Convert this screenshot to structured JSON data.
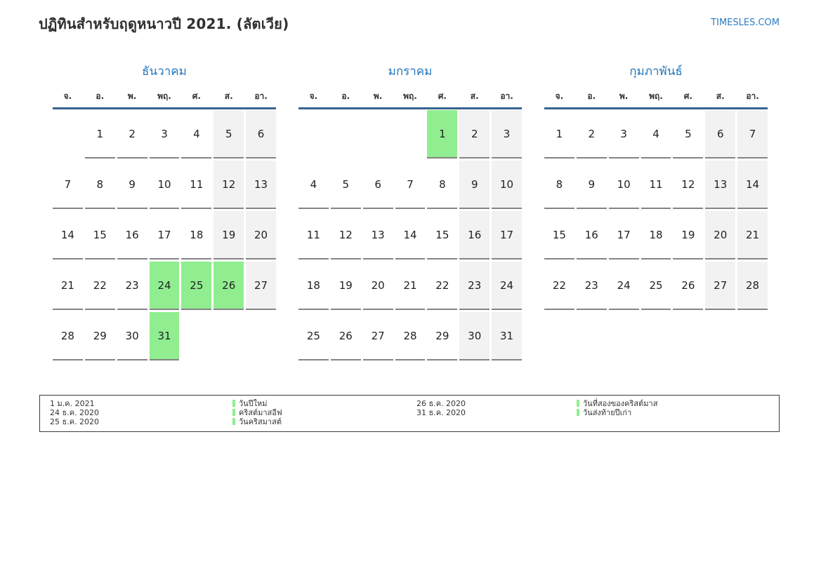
{
  "header": {
    "title": "ปฏิทินสำหรับฤดูหนาวปี 2021. (ลัตเวีย)",
    "site_link": "TIMESLES.COM"
  },
  "weekdays": [
    "จ.",
    "อ.",
    "พ.",
    "พฤ.",
    "ศ.",
    "ส.",
    "อา."
  ],
  "months": [
    {
      "name": "ธันวาคม",
      "weeks": [
        [
          "",
          "1",
          "2",
          "3",
          "4",
          "5",
          "6"
        ],
        [
          "7",
          "8",
          "9",
          "10",
          "11",
          "12",
          "13"
        ],
        [
          "14",
          "15",
          "16",
          "17",
          "18",
          "19",
          "20"
        ],
        [
          "21",
          "22",
          "23",
          "24",
          "25",
          "26",
          "27"
        ],
        [
          "28",
          "29",
          "30",
          "31",
          "",
          "",
          ""
        ]
      ],
      "holidays": [
        "24",
        "25",
        "26",
        "31"
      ]
    },
    {
      "name": "มกราคม",
      "weeks": [
        [
          "",
          "",
          "",
          "",
          "1",
          "2",
          "3"
        ],
        [
          "4",
          "5",
          "6",
          "7",
          "8",
          "9",
          "10"
        ],
        [
          "11",
          "12",
          "13",
          "14",
          "15",
          "16",
          "17"
        ],
        [
          "18",
          "19",
          "20",
          "21",
          "22",
          "23",
          "24"
        ],
        [
          "25",
          "26",
          "27",
          "28",
          "29",
          "30",
          "31"
        ]
      ],
      "holidays": [
        "1"
      ]
    },
    {
      "name": "กุมภาพันธ์",
      "weeks": [
        [
          "1",
          "2",
          "3",
          "4",
          "5",
          "6",
          "7"
        ],
        [
          "8",
          "9",
          "10",
          "11",
          "12",
          "13",
          "14"
        ],
        [
          "15",
          "16",
          "17",
          "18",
          "19",
          "20",
          "21"
        ],
        [
          "22",
          "23",
          "24",
          "25",
          "26",
          "27",
          "28"
        ]
      ],
      "holidays": []
    }
  ],
  "legend": {
    "groups": [
      {
        "items": [
          {
            "date": "1 ม.ค. 2021",
            "name": "วันปีใหม่"
          },
          {
            "date": "24 ธ.ค. 2020",
            "name": "คริสต์มาสอีฟ"
          },
          {
            "date": "25 ธ.ค. 2020",
            "name": "วันคริสมาสต์"
          }
        ]
      },
      {
        "items": [
          {
            "date": "26 ธ.ค. 2020",
            "name": "วันที่สองของคริสต์มาส"
          },
          {
            "date": "31 ธ.ค. 2020",
            "name": "วันส่งท้ายปีเก่า"
          }
        ]
      }
    ]
  },
  "colors": {
    "holiday_bg": "#90ee90",
    "weekend_bg": "#f2f2f2",
    "month_title_blue": "#2377be",
    "site_link_blue": "#2b7bc3",
    "header_line_blue": "#38648f",
    "cell_border_gray": "#848484"
  }
}
